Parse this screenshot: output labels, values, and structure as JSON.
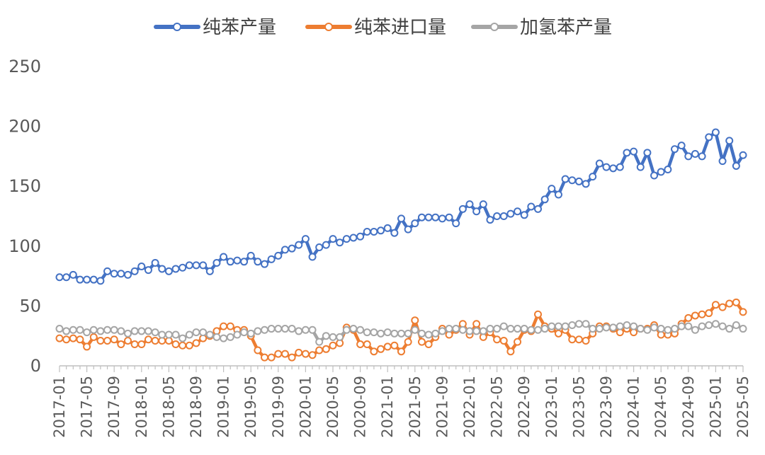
{
  "chart_data": {
    "type": "line",
    "title": "",
    "xlabel": "",
    "ylabel": "",
    "ylim": [
      0,
      250
    ],
    "yticks": [
      0,
      50,
      100,
      150,
      200,
      250
    ],
    "grid": false,
    "legend_position": "top",
    "x": [
      "2017-01",
      "2017-02",
      "2017-03",
      "2017-04",
      "2017-05",
      "2017-06",
      "2017-07",
      "2017-08",
      "2017-09",
      "2017-10",
      "2017-11",
      "2017-12",
      "2018-01",
      "2018-02",
      "2018-03",
      "2018-04",
      "2018-05",
      "2018-06",
      "2018-07",
      "2018-08",
      "2018-09",
      "2018-10",
      "2018-11",
      "2018-12",
      "2019-01",
      "2019-02",
      "2019-03",
      "2019-04",
      "2019-05",
      "2019-06",
      "2019-07",
      "2019-08",
      "2019-09",
      "2019-10",
      "2019-11",
      "2019-12",
      "2020-01",
      "2020-02",
      "2020-03",
      "2020-04",
      "2020-05",
      "2020-06",
      "2020-07",
      "2020-08",
      "2020-09",
      "2020-10",
      "2020-11",
      "2020-12",
      "2021-01",
      "2021-02",
      "2021-03",
      "2021-04",
      "2021-05",
      "2021-06",
      "2021-07",
      "2021-08",
      "2021-09",
      "2021-10",
      "2021-11",
      "2021-12",
      "2022-01",
      "2022-02",
      "2022-03",
      "2022-04",
      "2022-05",
      "2022-06",
      "2022-07",
      "2022-08",
      "2022-09",
      "2022-10",
      "2022-11",
      "2022-12",
      "2023-01",
      "2023-02",
      "2023-03",
      "2023-04",
      "2023-05",
      "2023-06",
      "2023-07",
      "2023-08",
      "2023-09",
      "2023-10",
      "2023-11",
      "2023-12",
      "2024-01",
      "2024-02",
      "2024-03",
      "2024-04",
      "2024-05",
      "2024-06",
      "2024-07",
      "2024-08",
      "2024-09",
      "2024-10",
      "2024-11",
      "2024-12",
      "2025-01",
      "2025-02",
      "2025-03",
      "2025-04",
      "2025-05"
    ],
    "x_tick_labels": [
      "2017-01",
      "2017-05",
      "2017-09",
      "2018-01",
      "2018-05",
      "2018-09",
      "2019-01",
      "2019-05",
      "2019-09",
      "2020-01",
      "2020-05",
      "2020-09",
      "2021-01",
      "2021-05",
      "2021-09",
      "2022-01",
      "2022-05",
      "2022-09",
      "2023-01",
      "2023-05",
      "2023-09",
      "2024-01",
      "2024-05",
      "2024-09",
      "2025-01",
      "2025-05"
    ],
    "series": [
      {
        "name": "纯苯产量",
        "color": "#4472C4",
        "values": [
          74,
          74,
          76,
          72,
          72,
          72,
          71,
          79,
          77,
          77,
          76,
          79,
          83,
          80,
          86,
          81,
          79,
          81,
          82,
          84,
          84,
          84,
          79,
          86,
          91,
          87,
          88,
          87,
          92,
          87,
          85,
          89,
          92,
          97,
          98,
          101,
          106,
          91,
          99,
          101,
          106,
          103,
          106,
          107,
          108,
          112,
          112,
          113,
          115,
          111,
          123,
          114,
          119,
          124,
          124,
          124,
          123,
          124,
          119,
          131,
          135,
          129,
          135,
          122,
          125,
          125,
          127,
          129,
          126,
          133,
          131,
          139,
          148,
          143,
          156,
          155,
          154,
          152,
          158,
          169,
          166,
          165,
          166,
          178,
          179,
          166,
          178,
          159,
          162,
          164,
          181,
          184,
          175,
          177,
          175,
          191,
          195,
          171,
          188,
          167,
          176
        ]
      },
      {
        "name": "纯苯进口量",
        "color": "#ED7D31",
        "values": [
          23,
          22,
          23,
          22,
          16,
          24,
          21,
          21,
          22,
          18,
          21,
          18,
          18,
          22,
          21,
          21,
          21,
          18,
          17,
          17,
          19,
          23,
          25,
          29,
          33,
          33,
          30,
          30,
          25,
          13,
          7,
          7,
          10,
          10,
          7,
          11,
          10,
          9,
          13,
          14,
          17,
          19,
          32,
          30,
          18,
          18,
          12,
          14,
          16,
          17,
          12,
          20,
          38,
          20,
          18,
          24,
          31,
          26,
          30,
          35,
          26,
          35,
          24,
          28,
          22,
          21,
          12,
          20,
          30,
          29,
          43,
          33,
          31,
          27,
          30,
          22,
          22,
          21,
          27,
          33,
          33,
          31,
          28,
          31,
          28,
          31,
          31,
          34,
          26,
          26,
          27,
          35,
          40,
          42,
          43,
          44,
          51,
          49,
          52,
          53,
          45
        ]
      },
      {
        "name": "加氢苯产量",
        "color": "#A5A5A5",
        "values": [
          31,
          29,
          30,
          30,
          28,
          30,
          29,
          30,
          30,
          29,
          27,
          29,
          29,
          29,
          28,
          26,
          26,
          26,
          23,
          26,
          28,
          28,
          26,
          24,
          23,
          24,
          26,
          28,
          27,
          29,
          30,
          31,
          31,
          31,
          31,
          29,
          30,
          30,
          20,
          25,
          24,
          24,
          30,
          31,
          30,
          28,
          28,
          27,
          28,
          27,
          27,
          27,
          30,
          27,
          26,
          27,
          29,
          31,
          31,
          30,
          29,
          29,
          29,
          31,
          31,
          33,
          31,
          31,
          31,
          30,
          30,
          31,
          33,
          33,
          33,
          34,
          35,
          35,
          31,
          31,
          32,
          32,
          33,
          34,
          33,
          31,
          30,
          32,
          31,
          30,
          31,
          33,
          33,
          30,
          33,
          34,
          35,
          33,
          31,
          34,
          31
        ]
      }
    ]
  }
}
